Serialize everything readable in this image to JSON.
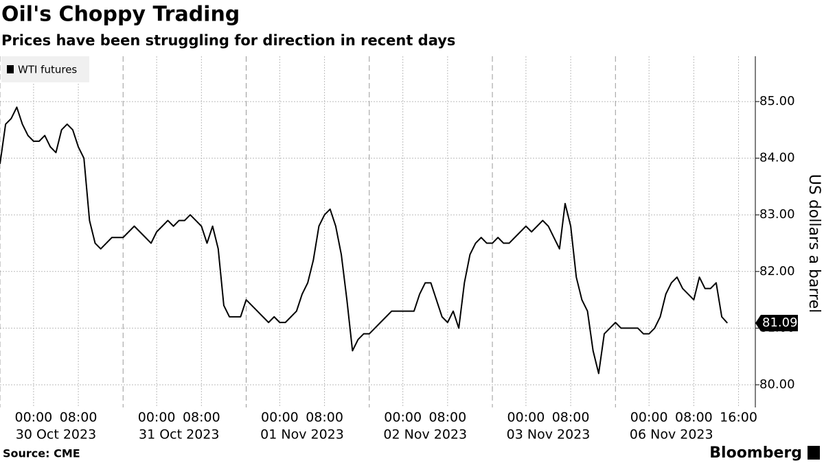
{
  "chart_data": {
    "type": "line",
    "title": "Oil's Choppy Trading",
    "subtitle": "Prices have been struggling for direction in recent days",
    "y_label": "US dollars a barrel",
    "source": "Source: CME",
    "credit": "Bloomberg",
    "legend_position": "top-left",
    "grid": true,
    "series": [
      {
        "name": "WTI futures",
        "color": "#000000",
        "x": [
          0,
          1,
          2,
          3,
          4,
          5,
          6,
          7,
          8,
          9,
          10,
          11,
          12,
          13,
          14,
          15,
          16,
          17,
          18,
          19,
          20,
          21,
          22,
          23,
          24,
          25,
          26,
          27,
          28,
          29,
          30,
          31,
          32,
          33,
          34,
          35,
          36,
          37,
          38,
          39,
          40,
          41,
          42,
          43,
          44,
          45,
          46,
          47,
          48,
          49,
          50,
          51,
          52,
          53,
          54,
          55,
          56,
          57,
          58,
          59,
          60,
          61,
          62,
          63,
          64,
          65,
          66,
          67,
          68,
          69,
          70,
          71,
          72,
          73,
          74,
          75,
          76,
          77,
          78,
          79,
          80,
          81,
          82,
          83,
          84,
          85,
          86,
          87,
          88,
          89,
          90,
          91,
          92,
          93,
          94,
          95,
          96,
          97,
          98,
          99,
          100,
          101,
          102,
          103,
          104,
          105,
          106,
          107,
          108,
          109,
          110,
          111,
          112,
          113,
          114,
          115,
          116,
          117,
          118,
          119,
          120,
          121,
          122,
          123,
          124,
          125,
          126,
          127,
          128,
          129,
          130
        ],
        "values": [
          83.9,
          84.6,
          84.7,
          84.9,
          84.6,
          84.4,
          84.3,
          84.3,
          84.4,
          84.2,
          84.1,
          84.5,
          84.6,
          84.5,
          84.2,
          84.0,
          82.9,
          82.5,
          82.4,
          82.5,
          82.6,
          82.6,
          82.6,
          82.7,
          82.8,
          82.7,
          82.6,
          82.5,
          82.7,
          82.8,
          82.9,
          82.8,
          82.9,
          82.9,
          83.0,
          82.9,
          82.8,
          82.5,
          82.8,
          82.4,
          81.4,
          81.2,
          81.2,
          81.2,
          81.5,
          81.4,
          81.3,
          81.2,
          81.1,
          81.2,
          81.1,
          81.1,
          81.2,
          81.3,
          81.6,
          81.8,
          82.2,
          82.8,
          83.0,
          83.1,
          82.8,
          82.3,
          81.5,
          80.6,
          80.8,
          80.9,
          80.9,
          81.0,
          81.1,
          81.2,
          81.3,
          81.3,
          81.3,
          81.3,
          81.3,
          81.6,
          81.8,
          81.8,
          81.5,
          81.2,
          81.1,
          81.3,
          81.0,
          81.8,
          82.3,
          82.5,
          82.6,
          82.5,
          82.5,
          82.6,
          82.5,
          82.5,
          82.6,
          82.7,
          82.8,
          82.7,
          82.8,
          82.9,
          82.8,
          82.6,
          82.4,
          83.2,
          82.8,
          81.9,
          81.5,
          81.3,
          80.6,
          80.2,
          80.9,
          81.0,
          81.1,
          81.0,
          81.0,
          81.0,
          81.0,
          80.9,
          80.9,
          81.0,
          81.2,
          81.6,
          81.8,
          81.9,
          81.7,
          81.6,
          81.5,
          81.9,
          81.7,
          81.7,
          81.8,
          81.2,
          81.09
        ]
      }
    ],
    "xlim": [
      0,
      135
    ],
    "ylim": [
      79.6,
      85.8
    ],
    "yticks": [
      {
        "value": 80,
        "label": "80.00"
      },
      {
        "value": 81,
        "label": "81.00"
      },
      {
        "value": 82,
        "label": "82.00"
      },
      {
        "value": 83,
        "label": "83.00"
      },
      {
        "value": 84,
        "label": "84.00"
      },
      {
        "value": 85,
        "label": "85.00"
      }
    ],
    "xticks": [
      {
        "value": 6,
        "label": "00:00"
      },
      {
        "value": 14,
        "label": "08:00"
      },
      {
        "value": 28,
        "label": "00:00"
      },
      {
        "value": 36,
        "label": "08:00"
      },
      {
        "value": 50,
        "label": "00:00"
      },
      {
        "value": 58,
        "label": "08:00"
      },
      {
        "value": 72,
        "label": "00:00"
      },
      {
        "value": 80,
        "label": "08:00"
      },
      {
        "value": 94,
        "label": "00:00"
      },
      {
        "value": 102,
        "label": "08:00"
      },
      {
        "value": 116,
        "label": "00:00"
      },
      {
        "value": 124,
        "label": "08:00"
      },
      {
        "value": 132,
        "label": "16:00"
      }
    ],
    "xdates": [
      {
        "value": 6,
        "label": "30 Oct 2023"
      },
      {
        "value": 28,
        "label": "31 Oct 2023"
      },
      {
        "value": 50,
        "label": "01 Nov 2023"
      },
      {
        "value": 72,
        "label": "02 Nov 2023"
      },
      {
        "value": 94,
        "label": "03 Nov 2023"
      },
      {
        "value": 116,
        "label": "06 Nov 2023"
      }
    ],
    "session_breaks": [
      0,
      22,
      44,
      66,
      88,
      110
    ]
  }
}
